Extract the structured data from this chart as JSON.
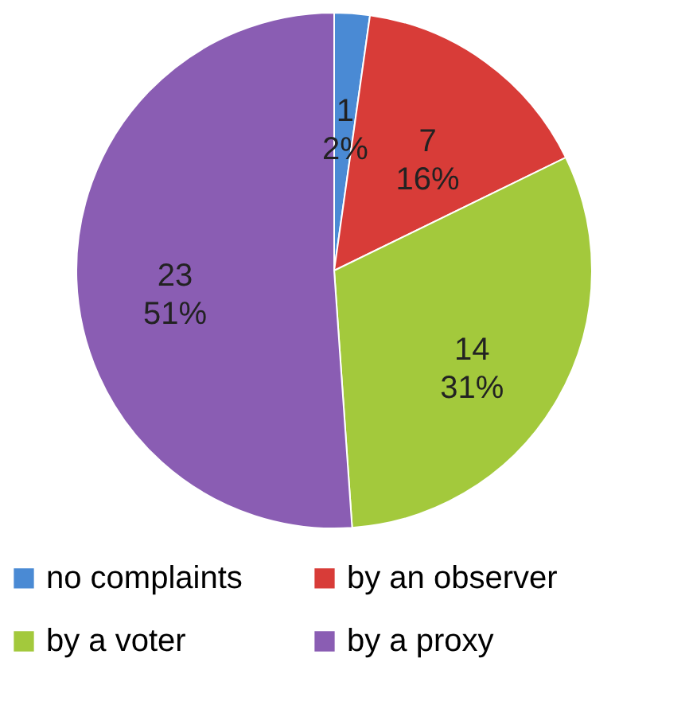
{
  "chart_data": {
    "type": "pie",
    "categories": [
      "no complaints",
      "by an observer",
      "by a voter",
      "by a proxy"
    ],
    "values": [
      1,
      7,
      14,
      23
    ],
    "colors": [
      "#4a8ad4",
      "#d83c38",
      "#a3c93c",
      "#8a5db3"
    ],
    "value_labels": [
      "1\n2%",
      "7\n16%",
      "14\n31%",
      "23\n51%"
    ],
    "legend": "bottom"
  }
}
